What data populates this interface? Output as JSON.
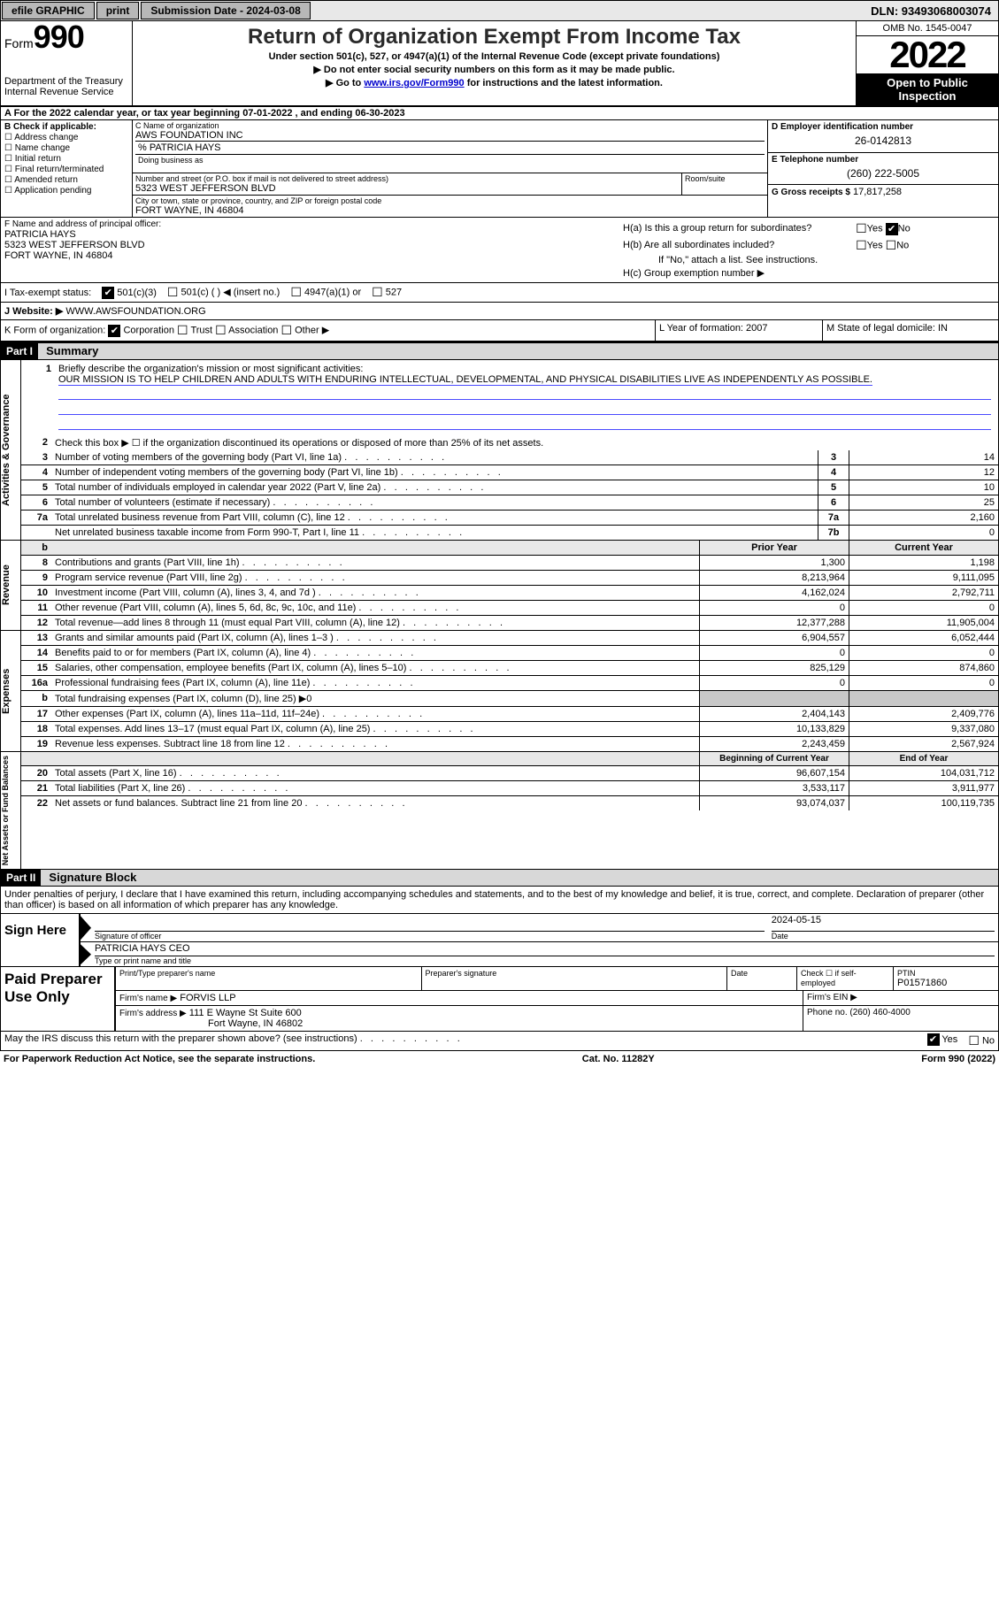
{
  "topbar": {
    "efile": "efile GRAPHIC",
    "print": "print",
    "submission": "Submission Date - 2024-03-08",
    "dln": "DLN: 93493068003074"
  },
  "header": {
    "form_prefix": "Form",
    "form_num": "990",
    "dept": "Department of the Treasury",
    "irs": "Internal Revenue Service",
    "title": "Return of Organization Exempt From Income Tax",
    "subtitle": "Under section 501(c), 527, or 4947(a)(1) of the Internal Revenue Code (except private foundations)",
    "note1": "▶ Do not enter social security numbers on this form as it may be made public.",
    "note2_pre": "▶ Go to ",
    "note2_link": "www.irs.gov/Form990",
    "note2_post": " for instructions and the latest information.",
    "omb": "OMB No. 1545-0047",
    "year": "2022",
    "open": "Open to Public Inspection"
  },
  "calendar": "A For the 2022 calendar year, or tax year beginning 07-01-2022    , and ending 06-30-2023",
  "sectionB": {
    "title": "B Check if applicable:",
    "items": [
      "Address change",
      "Name change",
      "Initial return",
      "Final return/terminated",
      "Amended return",
      "Application pending"
    ]
  },
  "sectionC": {
    "name_label": "C Name of organization",
    "name": "AWS FOUNDATION INC",
    "co": "% PATRICIA HAYS",
    "dba_label": "Doing business as",
    "street_label": "Number and street (or P.O. box if mail is not delivered to street address)",
    "street": "5323 WEST JEFFERSON BLVD",
    "room_label": "Room/suite",
    "city_label": "City or town, state or province, country, and ZIP or foreign postal code",
    "city": "FORT WAYNE, IN  46804"
  },
  "sectionD": {
    "ein_label": "D Employer identification number",
    "ein": "26-0142813",
    "phone_label": "E Telephone number",
    "phone": "(260) 222-5005",
    "gross_label": "G Gross receipts $",
    "gross": "17,817,258"
  },
  "sectionF": {
    "label": "F Name and address of principal officer:",
    "name": "PATRICIA HAYS",
    "street": "5323 WEST JEFFERSON BLVD",
    "city": "FORT WAYNE, IN  46804"
  },
  "sectionH": {
    "ha": "H(a)  Is this a group return for subordinates?",
    "hb": "H(b)  Are all subordinates included?",
    "hb_note": "If \"No,\" attach a list. See instructions.",
    "hc": "H(c)  Group exemption number ▶",
    "yes": "Yes",
    "no": "No"
  },
  "taxExempt": {
    "label": "I   Tax-exempt status:",
    "opt1": "501(c)(3)",
    "opt2": "501(c) (  ) ◀ (insert no.)",
    "opt3": "4947(a)(1) or",
    "opt4": "527"
  },
  "website": {
    "label": "J   Website: ▶",
    "value": "WWW.AWSFOUNDATION.ORG"
  },
  "klm": {
    "k": "K Form of organization:",
    "k_opts": [
      "Corporation",
      "Trust",
      "Association",
      "Other ▶"
    ],
    "l": "L Year of formation: 2007",
    "m": "M State of legal domicile: IN"
  },
  "part1": {
    "header": "Part I",
    "title": "Summary"
  },
  "mission": {
    "label": "Briefly describe the organization's mission or most significant activities:",
    "text": "OUR MISSION IS TO HELP CHILDREN AND ADULTS WITH ENDURING INTELLECTUAL, DEVELOPMENTAL, AND PHYSICAL DISABILITIES LIVE AS INDEPENDENTLY AS POSSIBLE."
  },
  "governance": {
    "vlabel": "Activities & Governance",
    "line2": "Check this box ▶ ☐  if the organization discontinued its operations or disposed of more than 25% of its net assets.",
    "lines": [
      {
        "n": "3",
        "text": "Number of voting members of the governing body (Part VI, line 1a)",
        "box": "3",
        "val": "14"
      },
      {
        "n": "4",
        "text": "Number of independent voting members of the governing body (Part VI, line 1b)",
        "box": "4",
        "val": "12"
      },
      {
        "n": "5",
        "text": "Total number of individuals employed in calendar year 2022 (Part V, line 2a)",
        "box": "5",
        "val": "10"
      },
      {
        "n": "6",
        "text": "Total number of volunteers (estimate if necessary)",
        "box": "6",
        "val": "25"
      },
      {
        "n": "7a",
        "text": "Total unrelated business revenue from Part VIII, column (C), line 12",
        "box": "7a",
        "val": "2,160"
      },
      {
        "n": "",
        "text": "Net unrelated business taxable income from Form 990-T, Part I, line 11",
        "box": "7b",
        "val": "0"
      }
    ]
  },
  "revenue": {
    "vlabel": "Revenue",
    "head_b": "b",
    "head_prior": "Prior Year",
    "head_current": "Current Year",
    "lines": [
      {
        "n": "8",
        "text": "Contributions and grants (Part VIII, line 1h)",
        "prior": "1,300",
        "curr": "1,198"
      },
      {
        "n": "9",
        "text": "Program service revenue (Part VIII, line 2g)",
        "prior": "8,213,964",
        "curr": "9,111,095"
      },
      {
        "n": "10",
        "text": "Investment income (Part VIII, column (A), lines 3, 4, and 7d )",
        "prior": "4,162,024",
        "curr": "2,792,711"
      },
      {
        "n": "11",
        "text": "Other revenue (Part VIII, column (A), lines 5, 6d, 8c, 9c, 10c, and 11e)",
        "prior": "0",
        "curr": "0"
      },
      {
        "n": "12",
        "text": "Total revenue—add lines 8 through 11 (must equal Part VIII, column (A), line 12)",
        "prior": "12,377,288",
        "curr": "11,905,004"
      }
    ]
  },
  "expenses": {
    "vlabel": "Expenses",
    "lines": [
      {
        "n": "13",
        "text": "Grants and similar amounts paid (Part IX, column (A), lines 1–3 )",
        "prior": "6,904,557",
        "curr": "6,052,444"
      },
      {
        "n": "14",
        "text": "Benefits paid to or for members (Part IX, column (A), line 4)",
        "prior": "0",
        "curr": "0"
      },
      {
        "n": "15",
        "text": "Salaries, other compensation, employee benefits (Part IX, column (A), lines 5–10)",
        "prior": "825,129",
        "curr": "874,860"
      },
      {
        "n": "16a",
        "text": "Professional fundraising fees (Part IX, column (A), line 11e)",
        "prior": "0",
        "curr": "0"
      },
      {
        "n": "b",
        "text": "Total fundraising expenses (Part IX, column (D), line 25) ▶0",
        "prior": "",
        "curr": "",
        "shaded": true
      },
      {
        "n": "17",
        "text": "Other expenses (Part IX, column (A), lines 11a–11d, 11f–24e)",
        "prior": "2,404,143",
        "curr": "2,409,776"
      },
      {
        "n": "18",
        "text": "Total expenses. Add lines 13–17 (must equal Part IX, column (A), line 25)",
        "prior": "10,133,829",
        "curr": "9,337,080"
      },
      {
        "n": "19",
        "text": "Revenue less expenses. Subtract line 18 from line 12",
        "prior": "2,243,459",
        "curr": "2,567,924"
      }
    ]
  },
  "netassets": {
    "vlabel": "Net Assets or Fund Balances",
    "head_begin": "Beginning of Current Year",
    "head_end": "End of Year",
    "lines": [
      {
        "n": "20",
        "text": "Total assets (Part X, line 16)",
        "prior": "96,607,154",
        "curr": "104,031,712"
      },
      {
        "n": "21",
        "text": "Total liabilities (Part X, line 26)",
        "prior": "3,533,117",
        "curr": "3,911,977"
      },
      {
        "n": "22",
        "text": "Net assets or fund balances. Subtract line 21 from line 20",
        "prior": "93,074,037",
        "curr": "100,119,735"
      }
    ]
  },
  "part2": {
    "header": "Part II",
    "title": "Signature Block",
    "declaration": "Under penalties of perjury, I declare that I have examined this return, including accompanying schedules and statements, and to the best of my knowledge and belief, it is true, correct, and complete. Declaration of preparer (other than officer) is based on all information of which preparer has any knowledge."
  },
  "sign": {
    "label": "Sign Here",
    "sig_label": "Signature of officer",
    "date": "2024-05-15",
    "date_label": "Date",
    "name": "PATRICIA HAYS CEO",
    "name_label": "Type or print name and title"
  },
  "preparer": {
    "label": "Paid Preparer Use Only",
    "print_label": "Print/Type preparer's name",
    "sig_label": "Preparer's signature",
    "date_label": "Date",
    "check_label": "Check ☐ if self-employed",
    "ptin_label": "PTIN",
    "ptin": "P01571860",
    "firm_label": "Firm's name    ▶",
    "firm_name": "FORVIS LLP",
    "ein_label": "Firm's EIN ▶",
    "addr_label": "Firm's address ▶",
    "addr1": "111 E Wayne St Suite 600",
    "addr2": "Fort Wayne, IN  46802",
    "phone_label": "Phone no.",
    "phone": "(260) 460-4000"
  },
  "bottom": {
    "discuss": "May the IRS discuss this return with the preparer shown above? (see instructions)",
    "yes": "Yes",
    "no": "No"
  },
  "footer": {
    "left": "For Paperwork Reduction Act Notice, see the separate instructions.",
    "mid": "Cat. No. 11282Y",
    "right": "Form 990 (2022)"
  }
}
